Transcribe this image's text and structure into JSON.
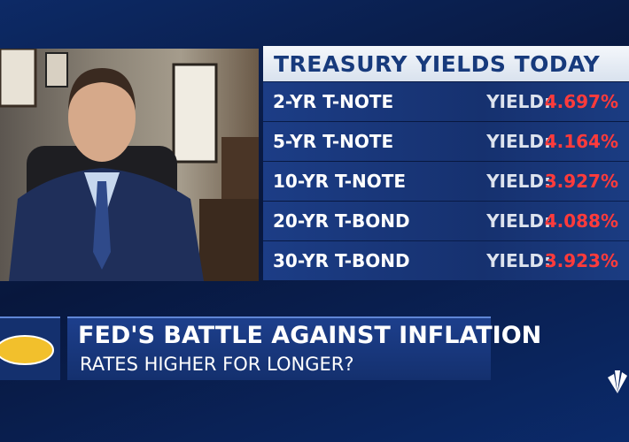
{
  "table": {
    "title": "TREASURY YIELDS TODAY",
    "rows": [
      [
        "2-YR T-NOTE",
        "YIELD:",
        "4.697%"
      ],
      [
        "5-YR T-NOTE",
        "YIELD:",
        "4.164%"
      ],
      [
        "10-YR T-NOTE",
        "YIELD:",
        "3.927%"
      ],
      [
        "20-YR T-BOND",
        "YIELD:",
        "4.088%"
      ],
      [
        "30-YR T-BOND",
        "YIELD:",
        "3.923%"
      ]
    ]
  },
  "banner": {
    "headline": "FED'S BATTLE AGAINST INFLATION",
    "subheadline": "RATES HIGHER FOR LONGER?"
  }
}
